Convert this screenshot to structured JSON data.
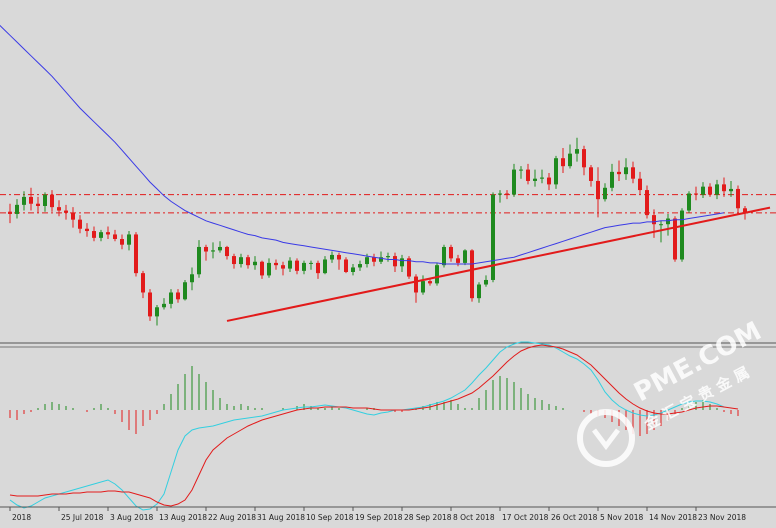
{
  "chart_data": [
    {
      "type": "candlestick",
      "panel": "price",
      "colors": {
        "background": "#d9d9d9",
        "up_candle": "#1f8a1f",
        "down_candle": "#e21b1b",
        "moving_average": "#3a3ae6",
        "trendline": "#e21b1b",
        "horizontal_levels": "#e21b1b"
      },
      "ohlc": [
        [
          51,
          49,
          58,
          41
        ],
        [
          49,
          57,
          62,
          45
        ],
        [
          57,
          64,
          69,
          52
        ],
        [
          64,
          58,
          72,
          52
        ],
        [
          58,
          56,
          64,
          50
        ],
        [
          56,
          66,
          68,
          51
        ],
        [
          66,
          55,
          70,
          51
        ],
        [
          55,
          52,
          61,
          47
        ],
        [
          52,
          50,
          57,
          44
        ],
        [
          50,
          44,
          55,
          37
        ],
        [
          44,
          36,
          48,
          32
        ],
        [
          36,
          34,
          41,
          29
        ],
        [
          34,
          28,
          38,
          25
        ],
        [
          28,
          33,
          35,
          25
        ],
        [
          33,
          31,
          38,
          27
        ],
        [
          31,
          27,
          35,
          25
        ],
        [
          27,
          22,
          31,
          18
        ],
        [
          22,
          31,
          34,
          17
        ],
        [
          31,
          -3,
          33,
          -6
        ],
        [
          -3,
          -20,
          -1,
          -25
        ],
        [
          -20,
          -41,
          -17,
          -45
        ],
        [
          -41,
          -33,
          -31,
          -49
        ],
        [
          -33,
          -30,
          -25,
          -35
        ],
        [
          -30,
          -20,
          -17,
          -34
        ],
        [
          -20,
          -26,
          -17,
          -29
        ],
        [
          -26,
          -11,
          -9,
          -27
        ],
        [
          -11,
          -4,
          2,
          -18
        ],
        [
          -4,
          20,
          26,
          -7
        ],
        [
          20,
          16,
          22,
          8
        ],
        [
          16,
          17,
          24,
          10
        ],
        [
          17,
          20,
          25,
          15
        ],
        [
          20,
          12,
          21,
          9
        ],
        [
          12,
          5,
          14,
          1
        ],
        [
          5,
          11,
          14,
          2
        ],
        [
          11,
          4,
          13,
          1
        ],
        [
          4,
          7,
          12,
          0
        ],
        [
          7,
          -5,
          8,
          -8
        ],
        [
          -5,
          6,
          10,
          -7
        ],
        [
          6,
          4,
          9,
          0
        ],
        [
          4,
          1,
          7,
          -5
        ],
        [
          1,
          8,
          11,
          -2
        ],
        [
          8,
          -1,
          10,
          -4
        ],
        [
          -1,
          6,
          8,
          -4
        ],
        [
          6,
          6,
          8,
          0
        ],
        [
          6,
          -3,
          8,
          -8
        ],
        [
          -3,
          9,
          12,
          -4
        ],
        [
          9,
          13,
          16,
          6
        ],
        [
          13,
          9,
          15,
          0
        ],
        [
          9,
          -2,
          11,
          -3
        ],
        [
          -2,
          2,
          5,
          -5
        ],
        [
          2,
          5,
          8,
          -1
        ],
        [
          5,
          11,
          14,
          2
        ],
        [
          11,
          7,
          14,
          3
        ],
        [
          7,
          11,
          16,
          5
        ],
        [
          11,
          12,
          15,
          7
        ],
        [
          12,
          3,
          15,
          -2
        ],
        [
          3,
          10,
          13,
          -2
        ],
        [
          10,
          -6,
          12,
          -8
        ],
        [
          -6,
          -20,
          -4,
          -29
        ],
        [
          -20,
          -10,
          -5,
          -22
        ],
        [
          -10,
          -12,
          -8,
          -14
        ],
        [
          -12,
          4,
          6,
          -14
        ],
        [
          4,
          20,
          22,
          2
        ],
        [
          20,
          10,
          22,
          7
        ],
        [
          10,
          6,
          13,
          3
        ],
        [
          6,
          17,
          18,
          4
        ],
        [
          17,
          -25,
          18,
          -28
        ],
        [
          -25,
          -13,
          -11,
          -29
        ],
        [
          -13,
          -9,
          -5,
          -15
        ],
        [
          -9,
          66,
          68,
          -11
        ],
        [
          66,
          67,
          70,
          59
        ],
        [
          67,
          66,
          70,
          62
        ],
        [
          66,
          88,
          93,
          64
        ],
        [
          88,
          88,
          91,
          80
        ],
        [
          88,
          78,
          93,
          75
        ],
        [
          78,
          80,
          88,
          73
        ],
        [
          80,
          81,
          88,
          76
        ],
        [
          81,
          75,
          85,
          70
        ],
        [
          75,
          98,
          100,
          71
        ],
        [
          98,
          91,
          107,
          85
        ],
        [
          91,
          102,
          110,
          89
        ],
        [
          102,
          106,
          116,
          95
        ],
        [
          106,
          90,
          109,
          83
        ],
        [
          90,
          78,
          92,
          73
        ],
        [
          78,
          62,
          90,
          46
        ],
        [
          62,
          72,
          76,
          60
        ],
        [
          72,
          86,
          93,
          69
        ],
        [
          86,
          84,
          96,
          78
        ],
        [
          84,
          90,
          98,
          79
        ],
        [
          90,
          80,
          95,
          76
        ],
        [
          80,
          70,
          86,
          66
        ],
        [
          70,
          48,
          74,
          45
        ],
        [
          48,
          40,
          53,
          28
        ],
        [
          40,
          40,
          43,
          24
        ],
        [
          40,
          45,
          49,
          30
        ],
        [
          45,
          9,
          47,
          7
        ],
        [
          9,
          52,
          54,
          7
        ],
        [
          52,
          67,
          69,
          50
        ],
        [
          67,
          66,
          73,
          61
        ],
        [
          66,
          73,
          77,
          63
        ],
        [
          73,
          66,
          76,
          64
        ],
        [
          66,
          75,
          79,
          62
        ],
        [
          75,
          69,
          81,
          64
        ],
        [
          69,
          71,
          78,
          64
        ],
        [
          71,
          54,
          74,
          49
        ],
        [
          54,
          50,
          56,
          44
        ]
      ],
      "moving_average": [
        218,
        212,
        206,
        200,
        194,
        188,
        182,
        176,
        170,
        163,
        156,
        149,
        142,
        136,
        130,
        124,
        118,
        112,
        105,
        98,
        91,
        84,
        77,
        71,
        65,
        60,
        56,
        52,
        49,
        46,
        43,
        41,
        39,
        37,
        35,
        33,
        31,
        30,
        28,
        27,
        26,
        24,
        23,
        22,
        21,
        20,
        19,
        18,
        17,
        16,
        15,
        14,
        13,
        12,
        11,
        10,
        9,
        9,
        8,
        8,
        7,
        7,
        6,
        6,
        5,
        5,
        5,
        5,
        5,
        6,
        7,
        8,
        9,
        10,
        11,
        13,
        15,
        17,
        19,
        21,
        23,
        25,
        27,
        29,
        31,
        33,
        35,
        37,
        38,
        39,
        40,
        41,
        41,
        42,
        42,
        43,
        43,
        44,
        44,
        45,
        46,
        47,
        48,
        49,
        50
      ],
      "horizontal_levels": [
        66,
        50
      ],
      "trendline": {
        "from": [
          31,
          -45
        ],
        "to": [
          105,
          50
        ],
        "extends_right": true
      },
      "x_tick_labels": [
        "2018",
        "25 Jul 2018",
        "3 Aug 2018",
        "13 Aug 2018",
        "22 Aug 2018",
        "31 Aug 2018",
        "10 Sep 2018",
        "19 Sep 2018",
        "28 Sep 2018",
        "8 Oct 2018",
        "17 Oct 2018",
        "26 Oct 2018",
        "5 Nov 2018",
        "14 Nov 2018",
        "23 Nov 2018"
      ],
      "x_tick_positions": [
        0,
        7,
        14,
        21,
        28,
        35,
        42,
        49,
        56,
        63,
        70,
        77,
        84,
        91,
        98
      ]
    },
    {
      "type": "histogram_with_lines",
      "panel": "oscillator",
      "colors": {
        "positive_bars": "#1f8a1f",
        "negative_bars": "#e21b1b",
        "fast_line": "#33cfe0",
        "signal_line": "#e21b1b"
      },
      "histogram": [
        -4,
        -5,
        -2,
        -1,
        1,
        3,
        4,
        3,
        2,
        1,
        0,
        -1,
        1,
        3,
        1,
        -2,
        -6,
        -10,
        -12,
        -8,
        -5,
        -2,
        3,
        8,
        13,
        18,
        22,
        18,
        14,
        10,
        6,
        3,
        2,
        3,
        2,
        1,
        1,
        0,
        0,
        1,
        0,
        2,
        3,
        2,
        1,
        1,
        2,
        1,
        0,
        0,
        0,
        1,
        1,
        0,
        0,
        -1,
        -1,
        0,
        1,
        2,
        3,
        4,
        4,
        5,
        3,
        1,
        1,
        6,
        10,
        15,
        17,
        16,
        14,
        11,
        8,
        6,
        5,
        3,
        2,
        1,
        0,
        0,
        -1,
        -2,
        -3,
        -4,
        -6,
        -8,
        -10,
        -12,
        -13,
        -12,
        -10,
        -8,
        -5,
        -2,
        1,
        3,
        4,
        5,
        3,
        1,
        -1,
        -2,
        -3
      ],
      "fast_line": [
        -90,
        -95,
        -98,
        -96,
        -92,
        -88,
        -86,
        -84,
        -82,
        -80,
        -78,
        -76,
        -74,
        -72,
        -70,
        -74,
        -80,
        -88,
        -96,
        -100,
        -99,
        -94,
        -84,
        -62,
        -40,
        -26,
        -20,
        -18,
        -17,
        -16,
        -14,
        -12,
        -10,
        -9,
        -8,
        -7,
        -6,
        -4,
        -2,
        0,
        1,
        2,
        3,
        3,
        4,
        5,
        4,
        3,
        2,
        0,
        -2,
        -4,
        -5,
        -3,
        -2,
        0,
        0,
        1,
        2,
        3,
        5,
        7,
        9,
        12,
        16,
        20,
        27,
        35,
        42,
        50,
        58,
        63,
        66,
        68,
        68,
        67,
        66,
        65,
        62,
        58,
        54,
        51,
        46,
        40,
        30,
        18,
        10,
        4,
        0,
        -3,
        -5,
        -6,
        -5,
        -3,
        0,
        3,
        6,
        8,
        9,
        9,
        8,
        6,
        3
      ],
      "signal_line": [
        -85,
        -86,
        -86,
        -86,
        -86,
        -85,
        -84,
        -84,
        -84,
        -83,
        -83,
        -82,
        -82,
        -82,
        -81,
        -81,
        -82,
        -82,
        -84,
        -86,
        -88,
        -92,
        -95,
        -96,
        -94,
        -90,
        -80,
        -65,
        -50,
        -40,
        -34,
        -28,
        -24,
        -20,
        -16,
        -13,
        -10,
        -8,
        -6,
        -4,
        -2,
        0,
        1,
        2,
        2,
        3,
        3,
        3,
        3,
        2,
        2,
        2,
        1,
        0,
        0,
        0,
        0,
        0,
        1,
        2,
        3,
        5,
        7,
        9,
        11,
        14,
        17,
        22,
        28,
        34,
        41,
        48,
        54,
        59,
        62,
        64,
        65,
        64,
        63,
        61,
        58,
        55,
        50,
        45,
        38,
        31,
        24,
        17,
        11,
        6,
        2,
        -1,
        -3,
        -4,
        -4,
        -3,
        -2,
        0,
        2,
        3,
        4,
        4,
        3,
        2,
        1
      ]
    }
  ],
  "watermark": {
    "brand": "PME.COM",
    "tagline": "金 汇 宝 贵 金 属"
  }
}
